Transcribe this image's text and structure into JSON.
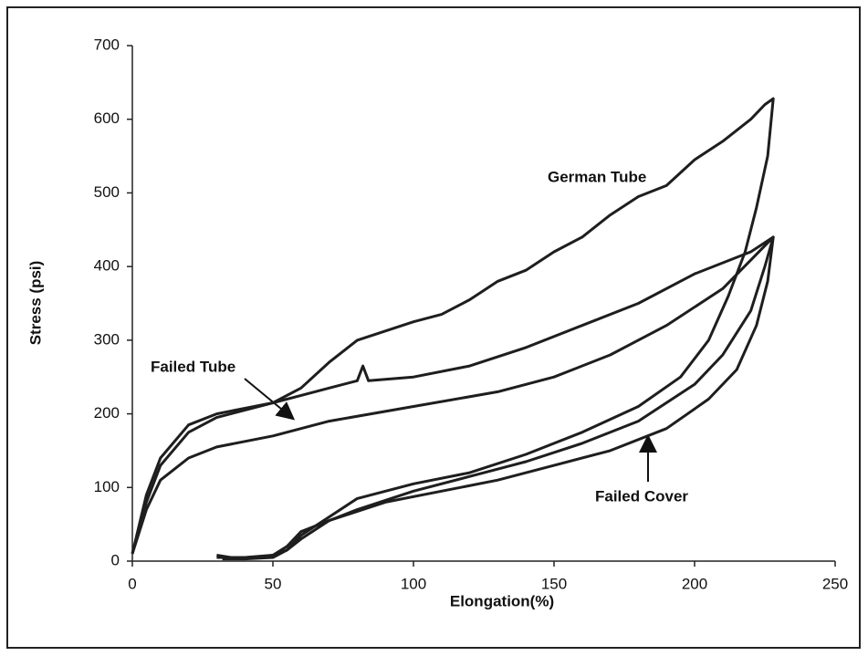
{
  "chart_data": {
    "type": "line",
    "x_label": "Elongation(%)",
    "y_label": "Stress (psi)",
    "xlim": [
      0,
      250
    ],
    "xticks": [
      0,
      50,
      100,
      150,
      200,
      250
    ],
    "ylim": [
      0,
      700
    ],
    "yticks": [
      0,
      100,
      200,
      300,
      400,
      500,
      600,
      700
    ],
    "grid": false,
    "series": [
      {
        "name": "German Tube",
        "color": "#1e1e1e",
        "x": [
          0,
          5,
          10,
          20,
          30,
          50,
          60,
          70,
          80,
          100,
          110,
          120,
          130,
          140,
          150,
          160,
          170,
          180,
          190,
          200,
          210,
          220,
          225,
          228,
          226,
          222,
          218,
          212,
          205,
          195,
          180,
          160,
          140,
          120,
          100,
          80,
          70,
          60,
          55,
          50,
          45,
          35,
          30
        ],
        "values": [
          10,
          80,
          130,
          175,
          195,
          215,
          235,
          270,
          300,
          325,
          335,
          355,
          380,
          395,
          420,
          440,
          470,
          495,
          510,
          545,
          570,
          600,
          620,
          628,
          550,
          480,
          420,
          360,
          300,
          250,
          210,
          175,
          145,
          120,
          105,
          85,
          60,
          35,
          15,
          8,
          5,
          5,
          8
        ]
      },
      {
        "name": "Failed Tube",
        "color": "#1e1e1e",
        "x": [
          0,
          5,
          10,
          20,
          30,
          50,
          60,
          70,
          80,
          82,
          84,
          100,
          120,
          140,
          160,
          180,
          200,
          220,
          228,
          225,
          220,
          210,
          200,
          180,
          160,
          140,
          120,
          100,
          80,
          60,
          55,
          50,
          40,
          30
        ],
        "values": [
          10,
          90,
          140,
          185,
          200,
          215,
          225,
          235,
          245,
          265,
          245,
          250,
          265,
          290,
          320,
          350,
          390,
          420,
          440,
          400,
          340,
          280,
          240,
          190,
          160,
          135,
          115,
          95,
          70,
          40,
          20,
          8,
          5,
          5
        ]
      },
      {
        "name": "Failed Cover",
        "color": "#1e1e1e",
        "x": [
          0,
          5,
          10,
          20,
          30,
          50,
          70,
          100,
          130,
          150,
          170,
          190,
          210,
          228,
          226,
          222,
          215,
          205,
          190,
          170,
          150,
          130,
          110,
          90,
          70,
          60,
          55,
          50,
          40,
          32
        ],
        "values": [
          10,
          70,
          110,
          140,
          155,
          170,
          190,
          210,
          230,
          250,
          280,
          320,
          370,
          440,
          380,
          320,
          260,
          220,
          180,
          150,
          130,
          110,
          95,
          80,
          55,
          30,
          15,
          5,
          3,
          3
        ]
      }
    ]
  }
}
